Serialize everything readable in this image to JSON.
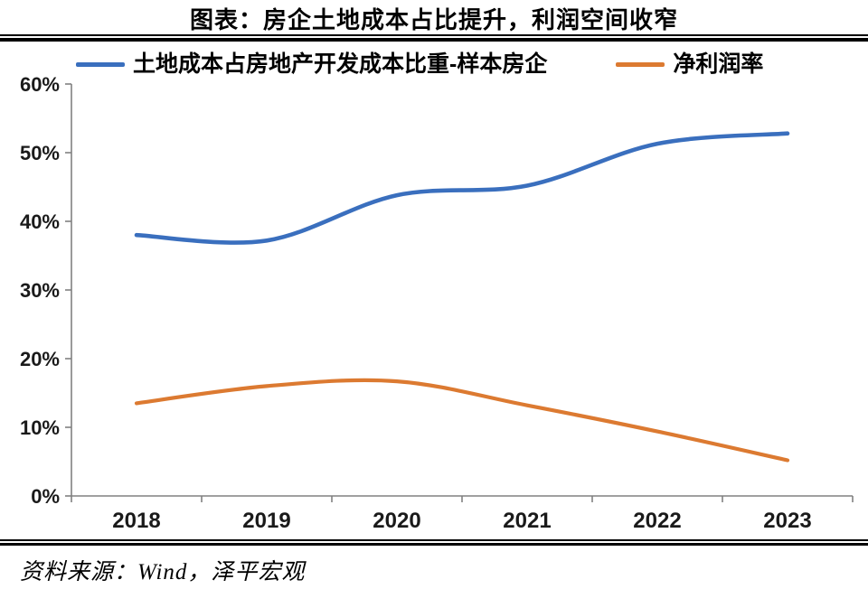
{
  "title": "图表：房企土地成本占比提升，利润空间收窄",
  "source_note": "资料来源：Wind，泽平宏观",
  "colors": {
    "series_land_cost": "#3A6FBE",
    "series_net_margin": "#DC7A31",
    "axis": "#808080",
    "tick_label": "#1A1A1A",
    "rule": "#000000"
  },
  "chart_data": {
    "type": "line",
    "title": "图表：房企土地成本占比提升，利润空间收窄",
    "categories": [
      "2018",
      "2019",
      "2020",
      "2021",
      "2022",
      "2023"
    ],
    "series": [
      {
        "name": "土地成本占房地产开发成本比重-样本房企",
        "color": "#3A6FBE",
        "values": [
          38.0,
          37.2,
          43.8,
          45.2,
          51.3,
          52.8
        ]
      },
      {
        "name": "净利润率",
        "color": "#DC7A31",
        "values": [
          13.5,
          16.0,
          16.7,
          13.2,
          9.4,
          5.2
        ]
      }
    ],
    "xlabel": "",
    "ylabel": "",
    "ylim": [
      0,
      60
    ],
    "ytick_step": 10,
    "yticks": [
      "0%",
      "10%",
      "20%",
      "30%",
      "40%",
      "50%",
      "60%"
    ],
    "legend_position": "top",
    "grid": false,
    "smooth": true,
    "source": "资料来源：Wind，泽平宏观"
  }
}
